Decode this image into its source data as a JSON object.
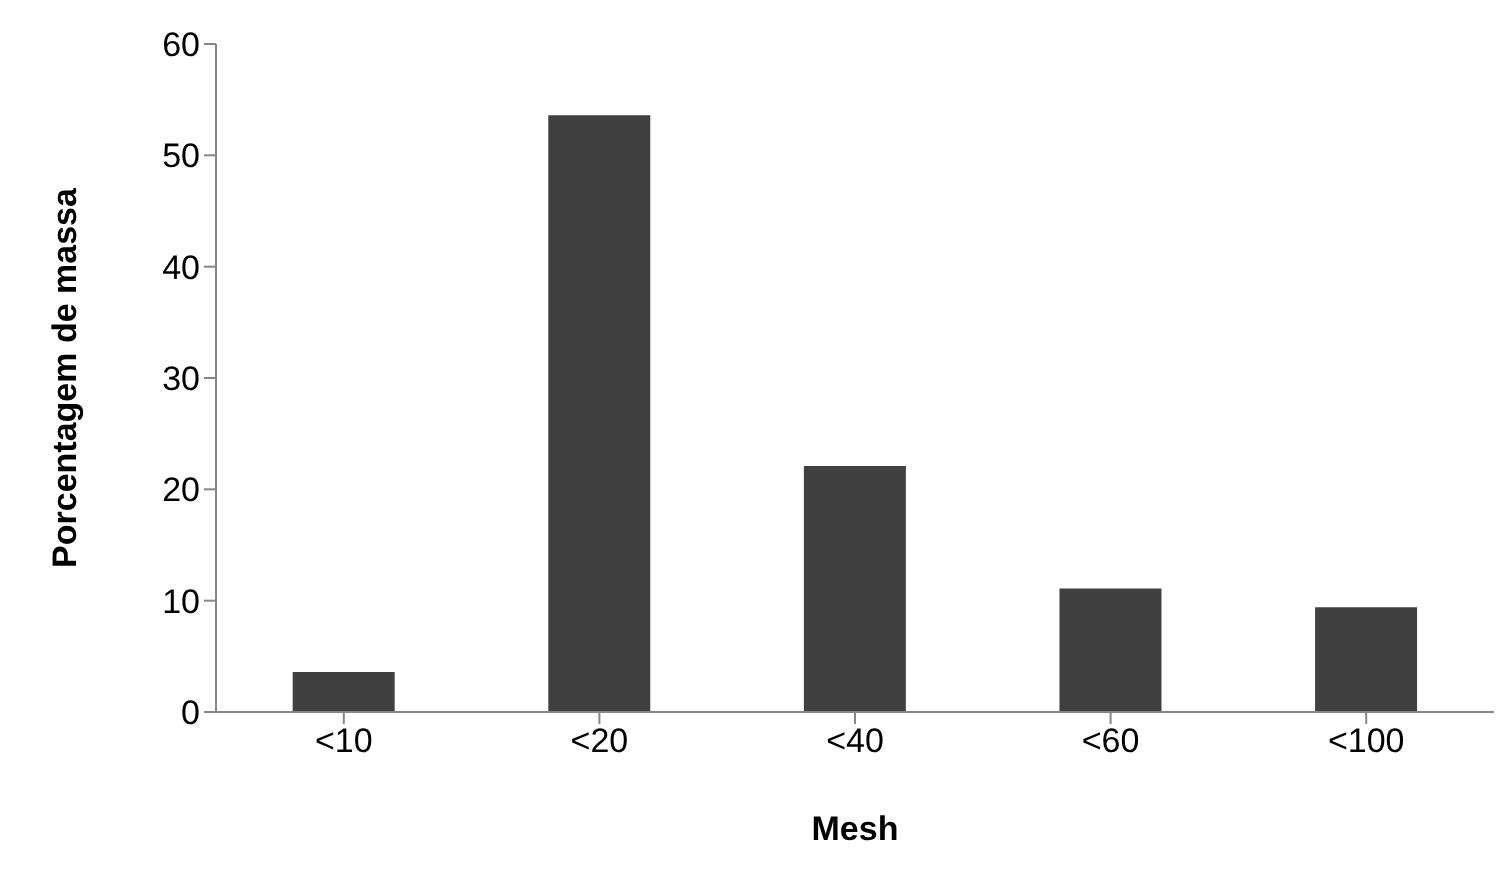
{
  "chart_data": {
    "type": "bar",
    "xlabel": "Mesh",
    "ylabel": "Porcentagem de massa",
    "categories": [
      "<10",
      "<20",
      "<40",
      "<60",
      "<100"
    ],
    "series": [
      {
        "color": "#404040",
        "values": [
          3.6,
          53.6,
          22.1,
          11.1,
          9.4
        ]
      }
    ],
    "ylim": [
      0,
      60
    ],
    "yticks": [
      0,
      10,
      20,
      30,
      40,
      50,
      60
    ],
    "grid": false,
    "legend": false
  }
}
